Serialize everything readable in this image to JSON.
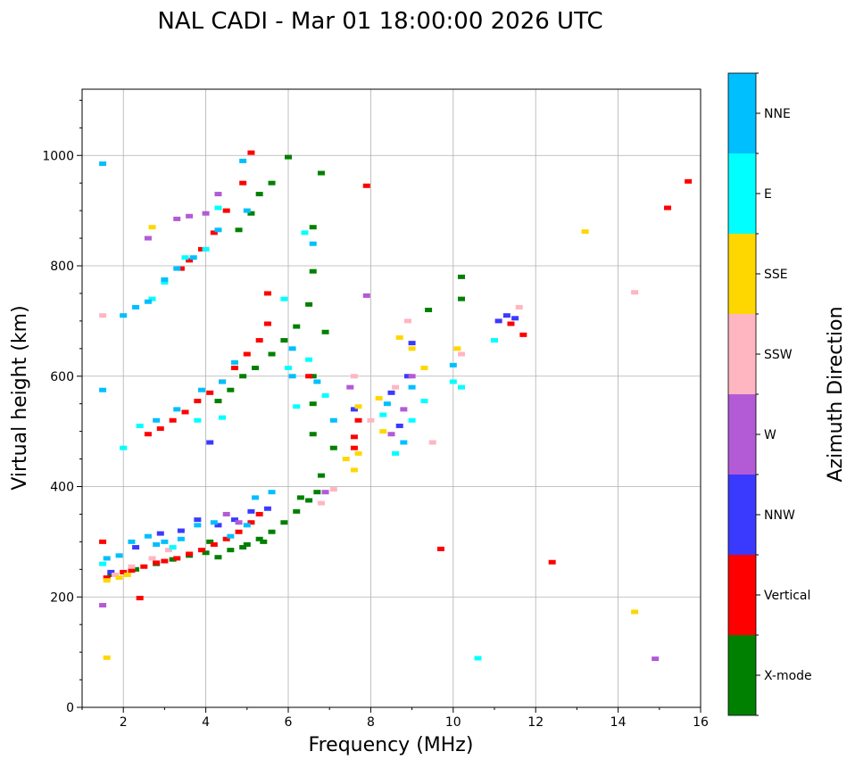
{
  "chart_data": {
    "type": "scatter",
    "title": "NAL CADI - Mar 01 18:00:00 2026 UTC",
    "xlabel": "Frequency (MHz)",
    "ylabel": "Virtual height (km)",
    "xlim": [
      1,
      16
    ],
    "ylim": [
      0,
      1120
    ],
    "xticks": [
      "2",
      "4",
      "6",
      "8",
      "10",
      "12",
      "14",
      "16"
    ],
    "xtick_values": [
      2,
      4,
      6,
      8,
      10,
      12,
      14,
      16
    ],
    "yticks": [
      "0",
      "200",
      "400",
      "600",
      "800",
      "1000"
    ],
    "ytick_values": [
      0,
      200,
      400,
      600,
      800,
      1000
    ],
    "grid": true,
    "colorbar": {
      "label": "Azimuth Direction",
      "categories": [
        "X-mode",
        "Vertical",
        "NNW",
        "W",
        "SSW",
        "SSE",
        "E",
        "NNE"
      ],
      "colors": [
        "#008000",
        "#ff0000",
        "#3a3aff",
        "#b35ad6",
        "#ffb6c1",
        "#ffd700",
        "#00ffff",
        "#00bfff"
      ]
    },
    "series": [
      {
        "name": "X-mode",
        "points": [
          [
            1.7,
            240
          ],
          [
            2.3,
            250
          ],
          [
            2.8,
            260
          ],
          [
            3.2,
            268
          ],
          [
            3.6,
            275
          ],
          [
            4.0,
            280
          ],
          [
            4.3,
            272
          ],
          [
            4.6,
            285
          ],
          [
            5.0,
            295
          ],
          [
            5.3,
            305
          ],
          [
            5.6,
            318
          ],
          [
            5.9,
            335
          ],
          [
            6.2,
            355
          ],
          [
            6.5,
            375
          ],
          [
            6.7,
            390
          ],
          [
            4.3,
            555
          ],
          [
            4.6,
            575
          ],
          [
            4.9,
            600
          ],
          [
            5.2,
            615
          ],
          [
            5.6,
            640
          ],
          [
            5.9,
            665
          ],
          [
            6.2,
            690
          ],
          [
            6.5,
            730
          ],
          [
            6.6,
            790
          ],
          [
            4.8,
            865
          ],
          [
            5.1,
            895
          ],
          [
            5.3,
            930
          ],
          [
            5.6,
            950
          ],
          [
            6.6,
            870
          ],
          [
            6.8,
            968
          ],
          [
            6.0,
            997
          ],
          [
            6.6,
            600
          ],
          [
            6.9,
            680
          ],
          [
            9.4,
            720
          ],
          [
            10.2,
            780
          ],
          [
            10.2,
            740
          ],
          [
            7.1,
            470
          ],
          [
            6.8,
            420
          ],
          [
            4.1,
            300
          ],
          [
            4.9,
            290
          ],
          [
            5.4,
            300
          ],
          [
            6.3,
            380
          ],
          [
            6.6,
            495
          ],
          [
            6.6,
            550
          ]
        ]
      },
      {
        "name": "Vertical",
        "points": [
          [
            1.6,
            235
          ],
          [
            1.8,
            240
          ],
          [
            2.0,
            245
          ],
          [
            2.2,
            248
          ],
          [
            2.5,
            255
          ],
          [
            2.8,
            262
          ],
          [
            3.0,
            265
          ],
          [
            3.3,
            270
          ],
          [
            3.6,
            278
          ],
          [
            3.9,
            285
          ],
          [
            4.2,
            295
          ],
          [
            4.5,
            305
          ],
          [
            4.8,
            318
          ],
          [
            5.1,
            335
          ],
          [
            5.3,
            350
          ],
          [
            2.6,
            495
          ],
          [
            2.9,
            505
          ],
          [
            3.2,
            520
          ],
          [
            3.5,
            535
          ],
          [
            3.8,
            555
          ],
          [
            4.1,
            570
          ],
          [
            4.4,
            590
          ],
          [
            4.7,
            615
          ],
          [
            5.0,
            640
          ],
          [
            5.3,
            665
          ],
          [
            5.5,
            695
          ],
          [
            3.4,
            795
          ],
          [
            3.6,
            810
          ],
          [
            3.9,
            830
          ],
          [
            4.2,
            860
          ],
          [
            4.5,
            900
          ],
          [
            4.9,
            950
          ],
          [
            5.1,
            1005
          ],
          [
            5.5,
            750
          ],
          [
            7.6,
            470
          ],
          [
            7.6,
            490
          ],
          [
            7.7,
            520
          ],
          [
            6.5,
            600
          ],
          [
            7.9,
            945
          ],
          [
            9.7,
            287
          ],
          [
            12.4,
            263
          ],
          [
            11.7,
            675
          ],
          [
            11.4,
            695
          ],
          [
            15.2,
            905
          ],
          [
            15.7,
            953
          ],
          [
            1.5,
            300
          ],
          [
            2.4,
            198
          ]
        ]
      },
      {
        "name": "NNW",
        "points": [
          [
            1.7,
            245
          ],
          [
            2.3,
            290
          ],
          [
            2.9,
            315
          ],
          [
            3.4,
            320
          ],
          [
            3.8,
            340
          ],
          [
            4.3,
            330
          ],
          [
            4.7,
            340
          ],
          [
            5.1,
            355
          ],
          [
            5.5,
            360
          ],
          [
            4.1,
            480
          ],
          [
            8.5,
            570
          ],
          [
            8.9,
            600
          ],
          [
            9.0,
            660
          ],
          [
            8.7,
            510
          ],
          [
            7.6,
            540
          ],
          [
            11.1,
            700
          ],
          [
            11.5,
            705
          ],
          [
            11.3,
            710
          ]
        ]
      },
      {
        "name": "W",
        "points": [
          [
            3.3,
            885
          ],
          [
            3.6,
            890
          ],
          [
            4.0,
            895
          ],
          [
            4.3,
            930
          ],
          [
            2.6,
            850
          ],
          [
            1.5,
            185
          ],
          [
            8.5,
            495
          ],
          [
            8.8,
            540
          ],
          [
            9.0,
            600
          ],
          [
            7.5,
            580
          ],
          [
            4.5,
            350
          ],
          [
            4.8,
            335
          ],
          [
            7.9,
            746
          ],
          [
            14.9,
            88
          ],
          [
            6.9,
            390
          ]
        ]
      },
      {
        "name": "SSW",
        "points": [
          [
            1.8,
            240
          ],
          [
            2.2,
            255
          ],
          [
            2.7,
            270
          ],
          [
            3.1,
            285
          ],
          [
            6.8,
            370
          ],
          [
            7.1,
            395
          ],
          [
            8.0,
            520
          ],
          [
            8.6,
            580
          ],
          [
            8.9,
            700
          ],
          [
            7.6,
            600
          ],
          [
            10.2,
            640
          ],
          [
            14.4,
            752
          ],
          [
            11.6,
            725
          ],
          [
            9.5,
            480
          ],
          [
            1.5,
            710
          ]
        ]
      },
      {
        "name": "SSE",
        "points": [
          [
            1.6,
            230
          ],
          [
            1.9,
            235
          ],
          [
            2.1,
            240
          ],
          [
            2.7,
            870
          ],
          [
            7.6,
            430
          ],
          [
            7.7,
            460
          ],
          [
            7.7,
            545
          ],
          [
            8.2,
            560
          ],
          [
            8.7,
            670
          ],
          [
            9.0,
            650
          ],
          [
            9.3,
            615
          ],
          [
            10.1,
            650
          ],
          [
            13.2,
            862
          ],
          [
            14.4,
            173
          ],
          [
            1.6,
            90
          ],
          [
            7.4,
            450
          ],
          [
            8.3,
            500
          ]
        ]
      },
      {
        "name": "E",
        "points": [
          [
            1.5,
            260
          ],
          [
            2.0,
            470
          ],
          [
            2.4,
            510
          ],
          [
            3.0,
            770
          ],
          [
            3.5,
            815
          ],
          [
            4.0,
            830
          ],
          [
            4.3,
            905
          ],
          [
            3.8,
            520
          ],
          [
            6.2,
            545
          ],
          [
            6.9,
            565
          ],
          [
            8.3,
            530
          ],
          [
            8.6,
            460
          ],
          [
            9.0,
            520
          ],
          [
            9.3,
            555
          ],
          [
            10.0,
            590
          ],
          [
            10.2,
            580
          ],
          [
            10.6,
            89
          ],
          [
            11.0,
            665
          ],
          [
            6.5,
            630
          ],
          [
            6.0,
            615
          ],
          [
            4.4,
            525
          ],
          [
            6.4,
            860
          ],
          [
            5.9,
            740
          ],
          [
            3.2,
            290
          ],
          [
            2.7,
            740
          ]
        ]
      },
      {
        "name": "NNE",
        "points": [
          [
            1.6,
            270
          ],
          [
            1.9,
            275
          ],
          [
            2.2,
            300
          ],
          [
            2.6,
            310
          ],
          [
            3.0,
            300
          ],
          [
            3.4,
            305
          ],
          [
            3.8,
            330
          ],
          [
            4.2,
            335
          ],
          [
            4.6,
            310
          ],
          [
            5.0,
            330
          ],
          [
            5.2,
            380
          ],
          [
            5.6,
            390
          ],
          [
            2.0,
            710
          ],
          [
            2.3,
            725
          ],
          [
            2.6,
            735
          ],
          [
            3.0,
            775
          ],
          [
            3.3,
            795
          ],
          [
            3.7,
            815
          ],
          [
            4.3,
            865
          ],
          [
            4.9,
            990
          ],
          [
            5.0,
            900
          ],
          [
            2.8,
            520
          ],
          [
            3.3,
            540
          ],
          [
            3.9,
            575
          ],
          [
            4.4,
            590
          ],
          [
            4.7,
            625
          ],
          [
            6.1,
            650
          ],
          [
            6.1,
            600
          ],
          [
            6.7,
            590
          ],
          [
            7.1,
            520
          ],
          [
            8.4,
            550
          ],
          [
            8.8,
            480
          ],
          [
            9.0,
            580
          ],
          [
            1.5,
            985
          ],
          [
            1.5,
            575
          ],
          [
            10.0,
            620
          ],
          [
            6.6,
            840
          ],
          [
            2.8,
            295
          ]
        ]
      }
    ]
  }
}
